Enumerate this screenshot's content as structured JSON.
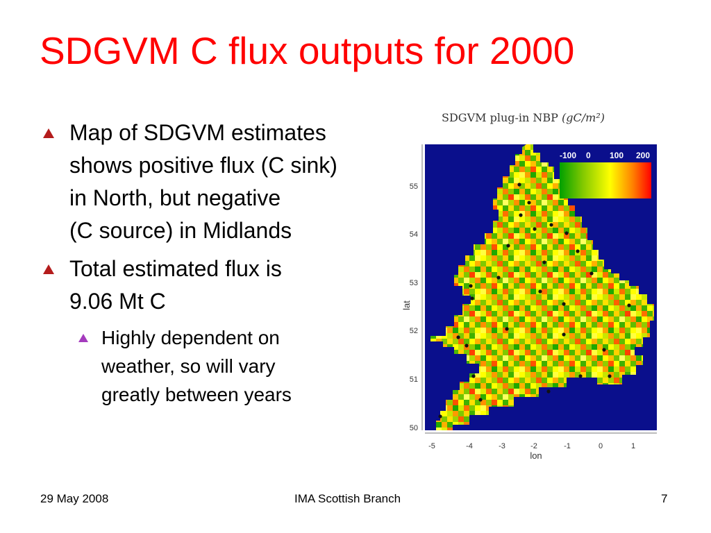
{
  "slide": {
    "title": "SDGVM C flux outputs for 2000",
    "bullets": [
      {
        "level": 1,
        "lines": [
          "Map of SDGVM estimates",
          "shows positive flux (C sink)",
          "in North, but negative",
          "(C source) in Midlands"
        ]
      },
      {
        "level": 1,
        "lines": [
          "Total estimated flux is",
          "9.06 Mt C"
        ]
      },
      {
        "level": 2,
        "lines": [
          "Highly dependent on",
          "weather, so will vary",
          "greatly between years"
        ]
      }
    ],
    "footer": {
      "date": "29 May 2008",
      "center": "IMA Scottish Branch",
      "page": "7"
    }
  },
  "map": {
    "title": "SDGVM plug-in NBP",
    "unit": "(gC/m²)",
    "xlabel": "lon",
    "ylabel": "lat",
    "x_ticks": [
      "-5",
      "-4",
      "-3",
      "-2",
      "-1",
      "0",
      "1"
    ],
    "y_ticks": [
      "50",
      "51",
      "52",
      "53",
      "54",
      "55"
    ],
    "colorbar_ticks": [
      "-100",
      "0",
      "100",
      "200"
    ],
    "colors": {
      "background": "#0a0f8c",
      "scale": [
        "#00a000",
        "#80c800",
        "#ffff00",
        "#ff8000",
        "#ff0000"
      ]
    }
  }
}
